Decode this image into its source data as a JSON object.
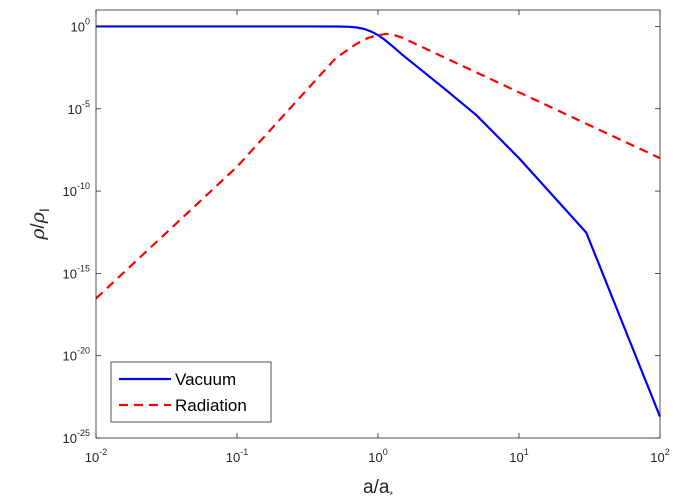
{
  "chart_data": {
    "type": "line",
    "xscale": "log",
    "yscale": "log",
    "xlim": [
      0.01,
      100
    ],
    "ylim": [
      1e-25,
      10
    ],
    "xticks": [
      {
        "base": "10",
        "exp": "-2",
        "value": 0.01
      },
      {
        "base": "10",
        "exp": "-1",
        "value": 0.1
      },
      {
        "base": "10",
        "exp": "0",
        "value": 1
      },
      {
        "base": "10",
        "exp": "1",
        "value": 10
      },
      {
        "base": "10",
        "exp": "2",
        "value": 100
      }
    ],
    "yticks": [
      {
        "base": "10",
        "exp": "0",
        "value": 1
      },
      {
        "base": "10",
        "exp": "-5",
        "value": 1e-05
      },
      {
        "base": "10",
        "exp": "-10",
        "value": 1e-10
      },
      {
        "base": "10",
        "exp": "-15",
        "value": 1e-15
      },
      {
        "base": "10",
        "exp": "-20",
        "value": 1e-20
      },
      {
        "base": "10",
        "exp": "-25",
        "value": 1e-25
      }
    ],
    "xlabel": {
      "main": "a/a",
      "sub": "*"
    },
    "ylabel": {
      "rho": "ρ",
      "slash": "/",
      "rho2": "ρ",
      "sub": "I"
    },
    "legend_position": "bottom-left",
    "series": [
      {
        "name": "Vacuum",
        "color": "#0000ff",
        "style": "solid",
        "points": [
          [
            0.01,
            1
          ],
          [
            0.1,
            1
          ],
          [
            0.3,
            1
          ],
          [
            0.5,
            0.99
          ],
          [
            0.6,
            0.97
          ],
          [
            0.7,
            0.88
          ],
          [
            0.8,
            0.7
          ],
          [
            0.9,
            0.48
          ],
          [
            1.0,
            0.3
          ],
          [
            1.1,
            0.17
          ],
          [
            1.25,
            0.07
          ],
          [
            1.5,
            0.018
          ],
          [
            2,
            0.0025
          ],
          [
            3,
            0.00015
          ],
          [
            5,
            4e-06
          ],
          [
            10,
            1e-08
          ],
          [
            30,
            3e-13
          ],
          [
            100,
            2e-24
          ]
        ]
      },
      {
        "name": "Radiation",
        "color": "#ff0000",
        "style": "dashed",
        "points": [
          [
            0.01,
            3e-17
          ],
          [
            0.1,
            3e-09
          ],
          [
            0.5,
            0.0117
          ],
          [
            0.7,
            0.086
          ],
          [
            0.85,
            0.2
          ],
          [
            1.0,
            0.3
          ],
          [
            1.15,
            0.35
          ],
          [
            1.3,
            0.3
          ],
          [
            1.5,
            0.2
          ],
          [
            2,
            0.0625
          ],
          [
            3,
            0.0123
          ],
          [
            5,
            0.0016
          ],
          [
            10,
            0.0001
          ],
          [
            30,
            1.23e-06
          ],
          [
            100,
            1e-08
          ]
        ]
      }
    ]
  }
}
